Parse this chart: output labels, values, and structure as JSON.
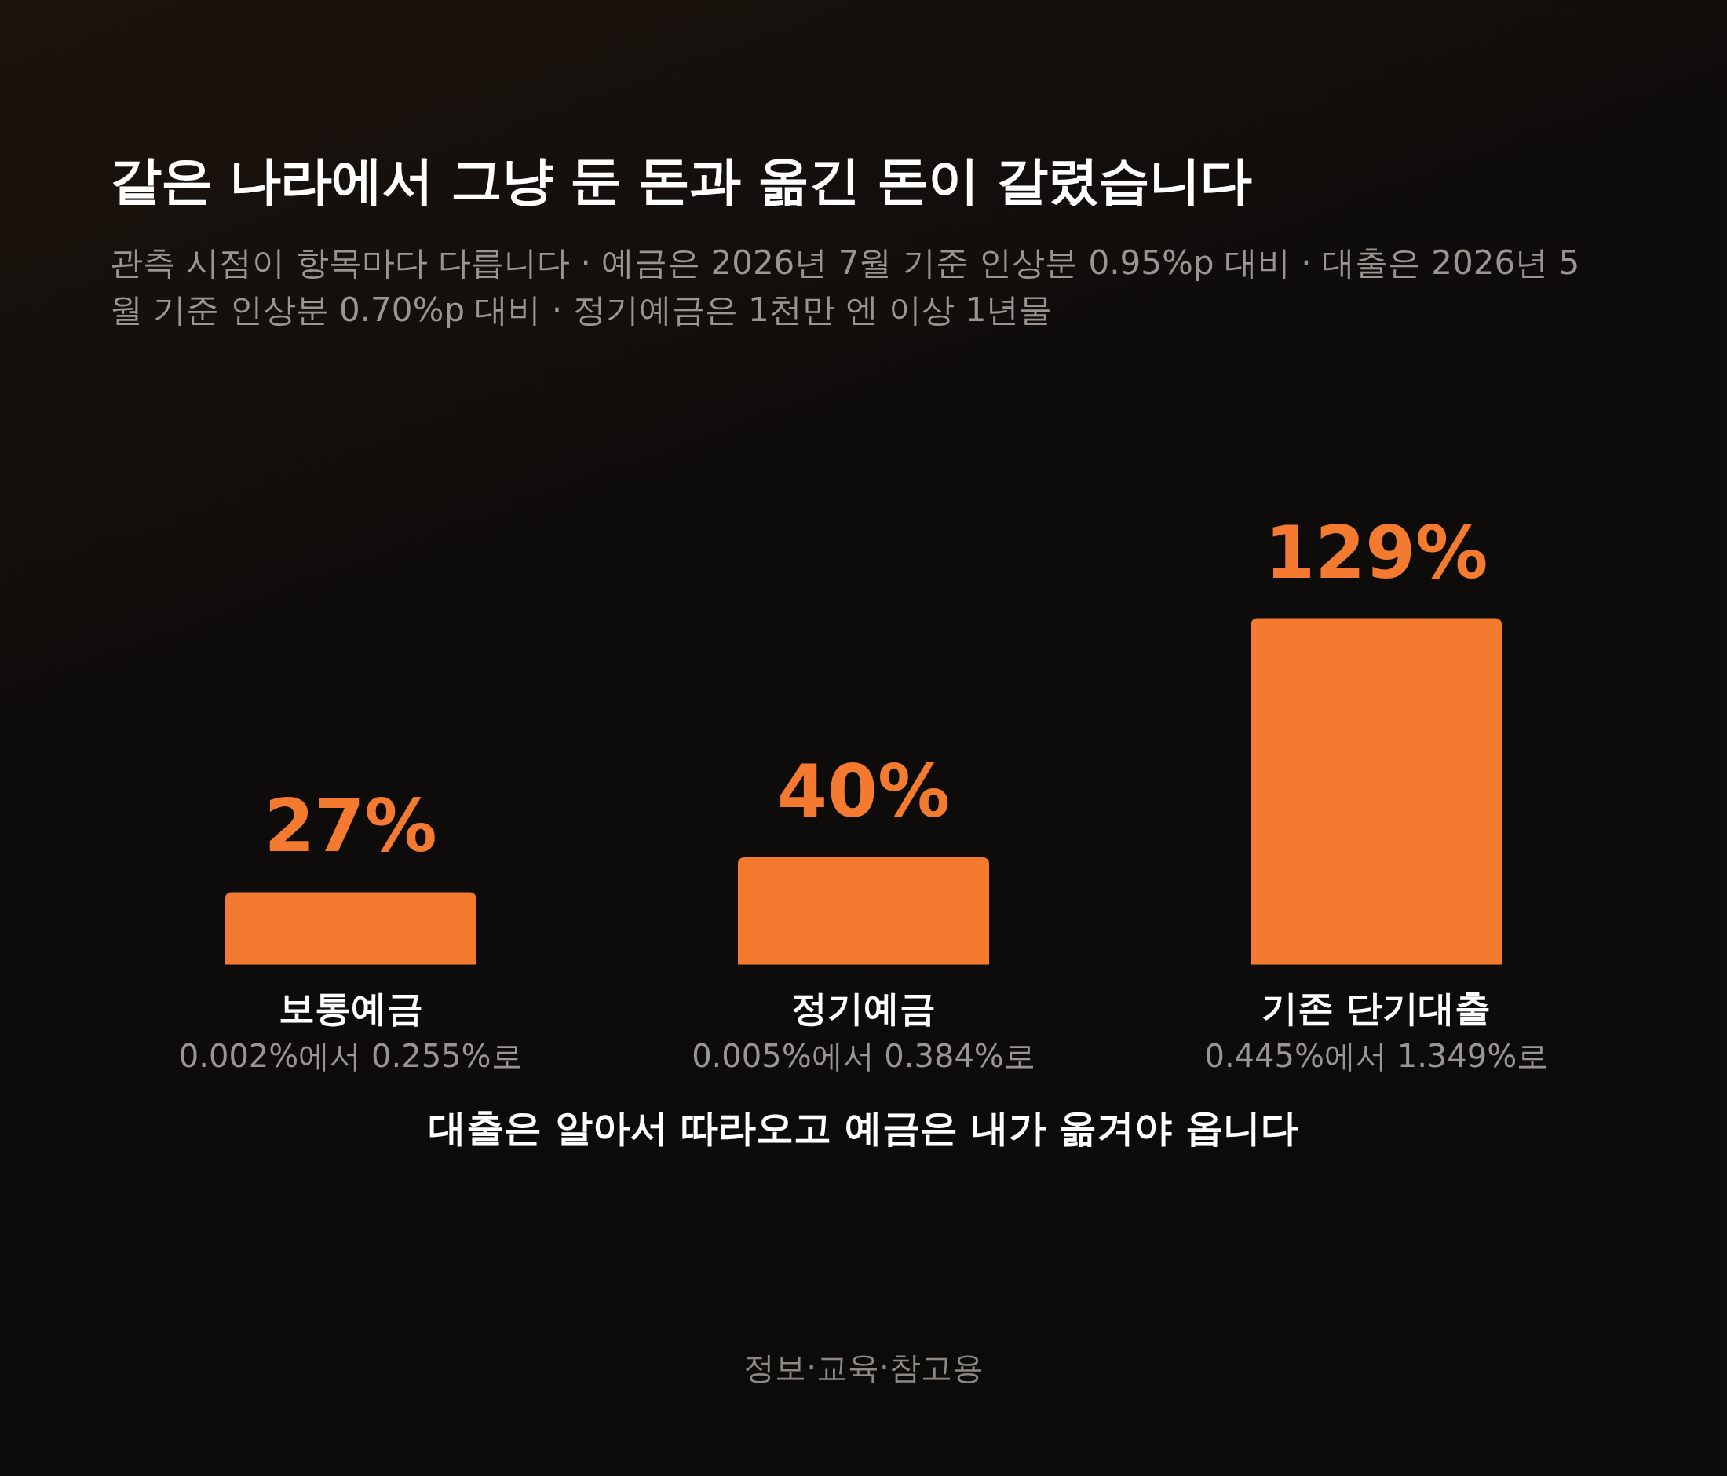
{
  "chart_data": {
    "type": "bar",
    "title": "같은 나라에서 그냥 둔 돈과 옮긴 돈이 갈렸습니다",
    "subtitle": "관측 시점이 항목마다 다릅니다 · 예금은 2026년 7월 기준 인상분 0.95%p 대비 · 대출은 2026년 5월 기준 인상분 0.70%p 대비 · 정기예금은 1천만 엔 이상 1년물",
    "categories": [
      "보통예금",
      "정기예금",
      "기존 단기대출"
    ],
    "values": [
      27,
      40,
      129
    ],
    "value_labels": [
      "27%",
      "40%",
      "129%"
    ],
    "color": "#f47a30",
    "annotations": [
      "0.002%에서 0.255%로",
      "0.005%에서 0.384%로",
      "0.445%에서 1.349%로",
      "대출은 알아서 따라오고 예금은 내가 옮겨야 옵니다",
      "정보·교육·참고용"
    ]
  }
}
